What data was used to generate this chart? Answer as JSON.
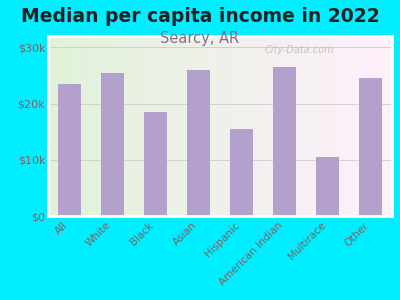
{
  "title": "Median per capita income in 2022",
  "subtitle": "Searcy, AR",
  "categories": [
    "All",
    "White",
    "Black",
    "Asian",
    "Hispanic",
    "American Indian",
    "Multirace",
    "Other"
  ],
  "values": [
    23500,
    25500,
    18500,
    26000,
    15500,
    26500,
    10500,
    24500
  ],
  "bar_color": "#b3a0cc",
  "background_outer": "#00eeff",
  "background_inner_topleft": "#dff0d8",
  "background_inner_right": "#f8fff0",
  "title_color": "#222222",
  "subtitle_color": "#8a6a8a",
  "tick_label_color": "#806060",
  "ytick_label_color": "#806060",
  "ylim": [
    0,
    32000
  ],
  "yticks": [
    0,
    10000,
    20000,
    30000
  ],
  "ytick_labels": [
    "$0",
    "$10k",
    "$20k",
    "$30k"
  ],
  "watermark": "City-Data.com",
  "title_fontsize": 13.5,
  "subtitle_fontsize": 10.5,
  "chart_border_color": "#ffffff",
  "spine_bottom_color": "#bbbbbb"
}
